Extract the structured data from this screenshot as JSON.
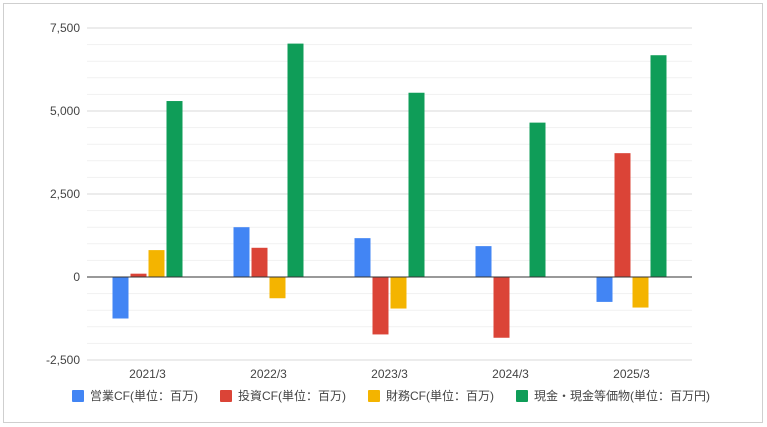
{
  "chart_data": {
    "type": "bar",
    "categories": [
      "2021/3",
      "2022/3",
      "2023/3",
      "2024/3",
      "2025/3"
    ],
    "series": [
      {
        "name": "営業CF(単位：百万)",
        "color": "#4285f4",
        "values": [
          -1250,
          1500,
          1170,
          930,
          -750
        ]
      },
      {
        "name": "投資CF(単位：百万)",
        "color": "#db4437",
        "values": [
          100,
          880,
          -1730,
          -1830,
          3730
        ]
      },
      {
        "name": "財務CF(単位：百万)",
        "color": "#f4b400",
        "values": [
          810,
          -640,
          -950,
          0,
          -920
        ]
      },
      {
        "name": "現金・現金等価物(単位：百万円)",
        "color": "#0f9d58",
        "values": [
          5300,
          7030,
          5550,
          4650,
          6680
        ]
      }
    ],
    "yticks": [
      "7,500",
      "5,000",
      "2,500",
      "0",
      "-2,500"
    ],
    "ytick_values": [
      7500,
      5000,
      2500,
      0,
      -2500
    ],
    "ylim": [
      -2500,
      7500
    ],
    "grid": true,
    "minor_grid": true,
    "legend": "bottom"
  }
}
